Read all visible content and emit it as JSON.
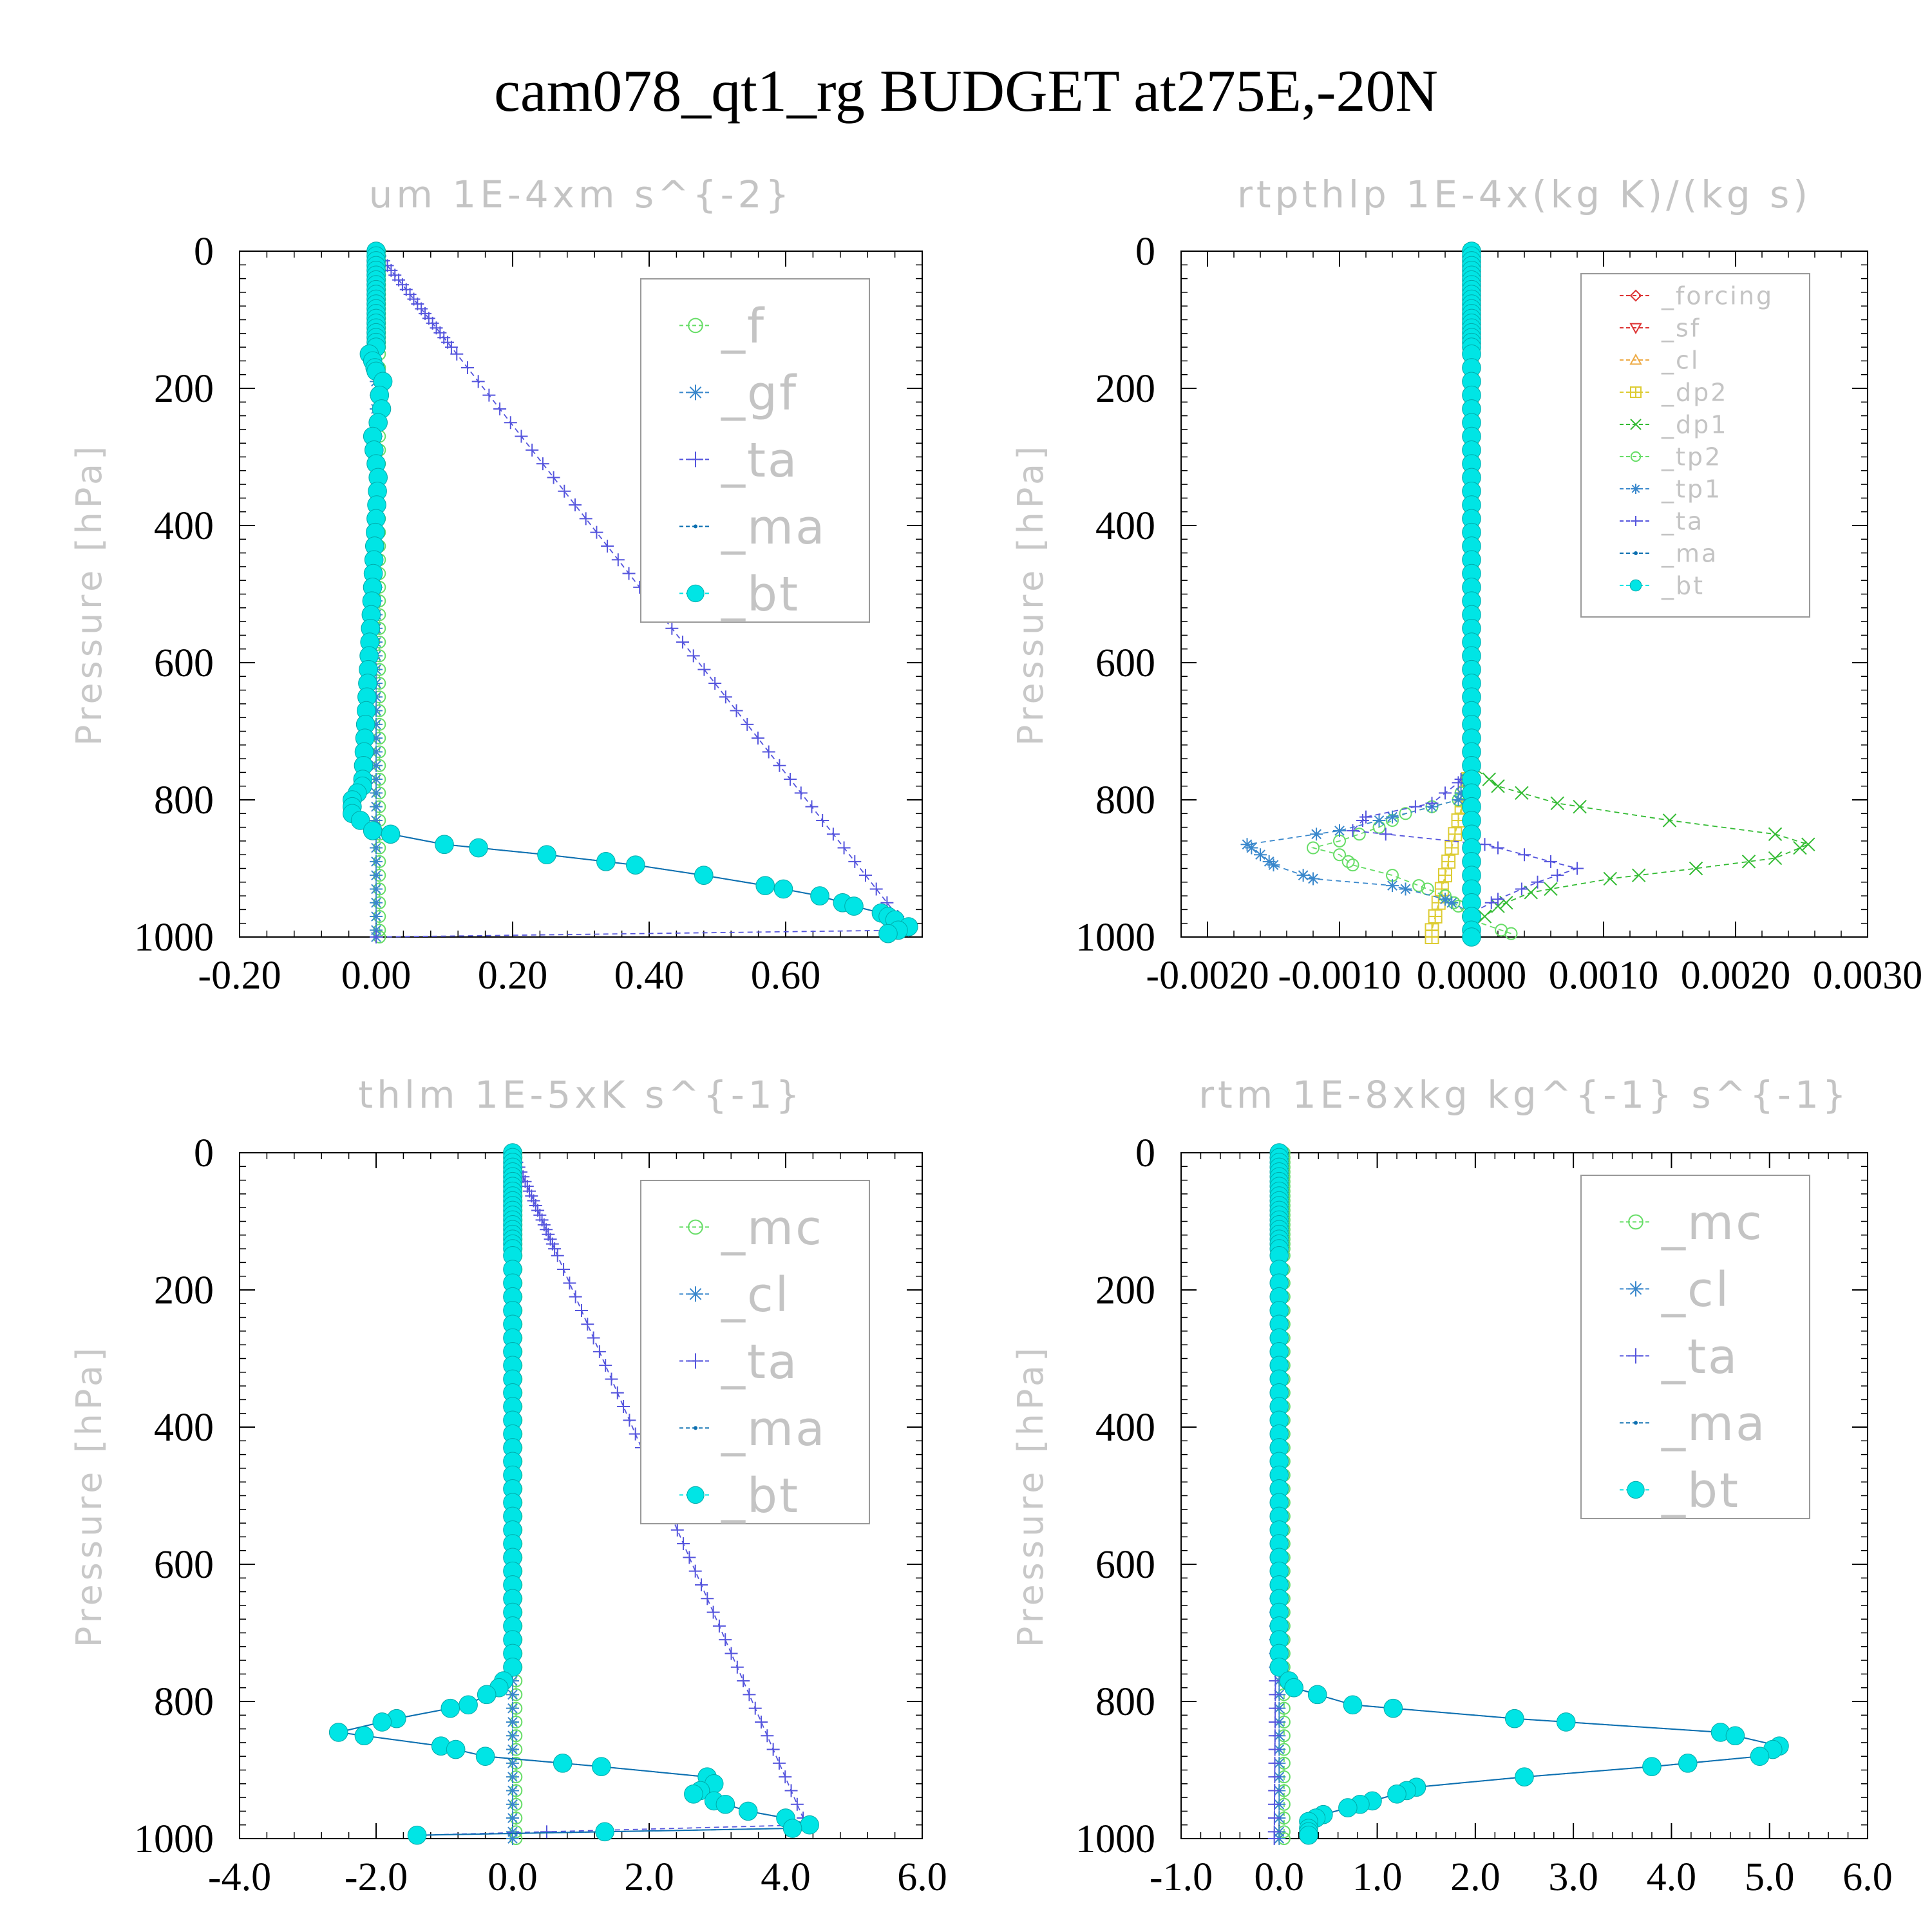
{
  "title": "cam078_qt1_rg  BUDGET at275E,-20N",
  "colors": {
    "bt": "#00e5e5",
    "ma": "#0b6fb0",
    "ta": "#5555dd",
    "gf": "#3a88cc",
    "f": "#66dd66",
    "mc": "#66dd66",
    "cl": "#3a88cc",
    "dp1": "#33bb33",
    "dp2": "#ddcc33",
    "tp1": "#3a88cc",
    "tp2": "#66dd66",
    "forcing": "#dd3333",
    "sf": "#dd3333",
    "cl_rt": "#eeaa44"
  },
  "chart_data": [
    {
      "type": "line",
      "title": "um  1E-4xm s^{-2}",
      "ylabel": "Pressure [hPa]",
      "xlim": [
        -0.2,
        0.8
      ],
      "ylim": [
        1000,
        0
      ],
      "xticks": [
        "-0.20",
        "0.00",
        "0.20",
        "0.40",
        "0.60"
      ],
      "xtick_values": [
        -0.2,
        0.0,
        0.2,
        0.4,
        0.6
      ],
      "yticks": [
        "0",
        "200",
        "400",
        "600",
        "800",
        "1000"
      ],
      "ytick_values": [
        0,
        200,
        400,
        600,
        800,
        1000
      ],
      "legend": [
        "_f",
        "_gf",
        "_ta",
        "_ma",
        "_bt"
      ],
      "legend_position": "top-right",
      "series": [
        {
          "name": "_f",
          "style": "circle",
          "pressure": [
            0,
            1000
          ],
          "values": [
            0.005,
            0.005
          ]
        },
        {
          "name": "_gf",
          "style": "star",
          "pressure": [
            0,
            1000
          ],
          "values": [
            0.0,
            0.0
          ]
        },
        {
          "name": "_ta",
          "style": "plus",
          "pressure": [
            0,
            990,
            1000
          ],
          "values": [
            0.0,
            0.78,
            0.0
          ]
        },
        {
          "name": "_ma",
          "style": "dot",
          "pressure": [
            0,
            140,
            150,
            160,
            175,
            190,
            210,
            230,
            250,
            270,
            290,
            310,
            330,
            780,
            800,
            820,
            845,
            865,
            880,
            895,
            910,
            925,
            940,
            955,
            965,
            975,
            985,
            995
          ],
          "values": [
            0.0,
            0.0,
            -0.01,
            -0.005,
            0.0,
            0.01,
            0.005,
            0.008,
            0.003,
            -0.005,
            -0.003,
            0.0,
            0.003,
            -0.02,
            -0.035,
            -0.035,
            -0.005,
            0.1,
            0.25,
            0.38,
            0.48,
            0.57,
            0.65,
            0.7,
            0.74,
            0.76,
            0.78,
            0.75
          ]
        },
        {
          "name": "_bt",
          "style": "disc",
          "pressure": [
            0,
            140,
            150,
            160,
            175,
            190,
            210,
            230,
            250,
            270,
            290,
            310,
            330,
            780,
            800,
            820,
            845,
            865,
            880,
            895,
            910,
            925,
            940,
            955,
            965,
            975,
            985,
            995
          ],
          "values": [
            0.0,
            0.0,
            -0.01,
            -0.005,
            0.0,
            0.01,
            0.005,
            0.008,
            0.003,
            -0.005,
            -0.003,
            0.0,
            0.003,
            -0.02,
            -0.035,
            -0.035,
            -0.005,
            0.1,
            0.25,
            0.38,
            0.48,
            0.57,
            0.65,
            0.7,
            0.74,
            0.76,
            0.78,
            0.75
          ]
        }
      ]
    },
    {
      "type": "line",
      "title": "rtpthlp  1E-4x(kg K)/(kg s)",
      "ylabel": "Pressure [hPa]",
      "xlim": [
        -0.0022,
        0.003
      ],
      "ylim": [
        1000,
        0
      ],
      "xticks": [
        "-0.0020",
        "-0.0010",
        "0.0000",
        "0.0010",
        "0.0020",
        "0.0030"
      ],
      "xtick_values": [
        -0.002,
        -0.001,
        0.0,
        0.001,
        0.002,
        0.003
      ],
      "yticks": [
        "0",
        "200",
        "400",
        "600",
        "800",
        "1000"
      ],
      "ytick_values": [
        0,
        200,
        400,
        600,
        800,
        1000
      ],
      "legend": [
        "_forcing",
        "_sf",
        "_cl",
        "_dp2",
        "_dp1",
        "_tp2",
        "_tp1",
        "_ta",
        "_ma",
        "_bt"
      ],
      "legend_position": "top-right",
      "series": [
        {
          "name": "_forcing",
          "style": "diamond",
          "pressure": [
            0,
            1000
          ],
          "values": [
            0.0,
            0.0
          ]
        },
        {
          "name": "_sf",
          "style": "triangle-down",
          "pressure": [
            0,
            1000
          ],
          "values": [
            0.0,
            0.0
          ]
        },
        {
          "name": "_cl",
          "style": "triangle-up",
          "pressure": [
            0,
            1000
          ],
          "values": [
            0.0,
            0.0
          ]
        },
        {
          "name": "_dp2",
          "style": "square-plus",
          "pressure": [
            0,
            750,
            990,
            1000
          ],
          "values": [
            0.0,
            0.0,
            -0.0003,
            -0.0003
          ]
        },
        {
          "name": "_dp1",
          "style": "x",
          "pressure": [
            0,
            750,
            780,
            805,
            830,
            850,
            865,
            885,
            900,
            915,
            935,
            955,
            970,
            985
          ],
          "values": [
            0.0,
            0.0,
            0.0002,
            0.00065,
            0.0015,
            0.0023,
            0.00255,
            0.0023,
            0.0017,
            0.00105,
            0.00045,
            0.0002,
            0.0001,
            0.0
          ],
          "label_ignore": true
        },
        {
          "name": "_tp2",
          "style": "circle",
          "pressure": [
            0,
            750,
            800,
            820,
            840,
            860,
            870,
            880,
            895,
            910,
            925,
            940,
            955,
            975,
            995
          ],
          "values": [
            0.0,
            0.0,
            -0.0001,
            -0.0005,
            -0.0007,
            -0.001,
            -0.0012,
            -0.001,
            -0.0009,
            -0.0006,
            -0.0004,
            -0.0002,
            -0.0001,
            0.0,
            0.0003
          ]
        },
        {
          "name": "_tp1",
          "style": "star",
          "pressure": [
            0,
            750,
            800,
            825,
            845,
            865,
            880,
            895,
            915,
            925,
            945,
            965,
            985
          ],
          "values": [
            0.0,
            0.0,
            -0.0001,
            -0.0006,
            -0.001,
            -0.0017,
            -0.0016,
            -0.0015,
            -0.0012,
            -0.0006,
            -0.0002,
            0.0,
            0.0
          ]
        },
        {
          "name": "_ta",
          "style": "plus",
          "pressure": [
            0,
            750,
            775,
            805,
            825,
            845,
            865,
            880,
            900,
            920,
            945,
            965,
            985
          ],
          "values": [
            0.0,
            0.0,
            -0.0001,
            -0.0003,
            -0.0008,
            -0.0009,
            0.0001,
            0.0004,
            0.0008,
            0.0005,
            0.0002,
            0.0,
            0.0
          ]
        },
        {
          "name": "_ma",
          "style": "dot",
          "pressure": [
            0,
            1000
          ],
          "values": [
            0.0,
            0.0
          ]
        },
        {
          "name": "_bt",
          "style": "disc",
          "pressure": [
            0,
            1000
          ],
          "values": [
            0.0,
            0.0
          ]
        }
      ]
    },
    {
      "type": "line",
      "title": "thlm  1E-5xK s^{-1}",
      "ylabel": "Pressure [hPa]",
      "xlim": [
        -4.0,
        6.0
      ],
      "ylim": [
        1000,
        0
      ],
      "xticks": [
        "-4.0",
        "-2.0",
        "0.0",
        "2.0",
        "4.0",
        "6.0"
      ],
      "xtick_values": [
        -4.0,
        -2.0,
        0.0,
        2.0,
        4.0,
        6.0
      ],
      "yticks": [
        "0",
        "200",
        "400",
        "600",
        "800",
        "1000"
      ],
      "ytick_values": [
        0,
        200,
        400,
        600,
        800,
        1000
      ],
      "legend": [
        "_mc",
        "_cl",
        "_ta",
        "_ma",
        "_bt"
      ],
      "legend_position": "top-right",
      "series": [
        {
          "name": "_mc",
          "style": "circle",
          "pressure": [
            0,
            1000
          ],
          "values": [
            0.05,
            0.05
          ]
        },
        {
          "name": "_cl",
          "style": "star",
          "pressure": [
            0,
            1000
          ],
          "values": [
            0.0,
            0.0
          ]
        },
        {
          "name": "_ta",
          "style": "plus",
          "pressure": [
            0,
            980,
            995
          ],
          "values": [
            0.0,
            4.3,
            -1.4
          ]
        },
        {
          "name": "_ma",
          "style": "dot",
          "pressure": [
            0,
            750,
            780,
            805,
            825,
            845,
            865,
            880,
            895,
            910,
            920,
            935,
            945,
            960,
            970,
            980,
            985,
            995
          ],
          "values": [
            0.0,
            0.0,
            -0.2,
            -0.65,
            -1.7,
            -2.55,
            -1.05,
            -0.4,
            1.3,
            2.85,
            2.95,
            2.65,
            2.95,
            3.45,
            4.0,
            4.35,
            4.1,
            -1.4
          ]
        },
        {
          "name": "_bt",
          "style": "disc",
          "pressure": [
            0,
            750,
            780,
            805,
            825,
            845,
            865,
            880,
            895,
            910,
            920,
            935,
            945,
            960,
            970,
            980,
            985,
            995
          ],
          "values": [
            0.0,
            0.0,
            -0.2,
            -0.65,
            -1.7,
            -2.55,
            -1.05,
            -0.4,
            1.3,
            2.85,
            2.95,
            2.65,
            2.95,
            3.45,
            4.0,
            4.35,
            4.1,
            -1.4
          ]
        }
      ]
    },
    {
      "type": "line",
      "title": "rtm  1E-8xkg kg^{-1} s^{-1}",
      "ylabel": "Pressure [hPa]",
      "xlim": [
        -1.0,
        6.0
      ],
      "ylim": [
        1000,
        0
      ],
      "xticks": [
        "-1.0",
        "0.0",
        "1.0",
        "2.0",
        "3.0",
        "4.0",
        "5.0",
        "6.0"
      ],
      "xtick_values": [
        -1.0,
        0.0,
        1.0,
        2.0,
        3.0,
        4.0,
        5.0,
        6.0
      ],
      "yticks": [
        "0",
        "200",
        "400",
        "600",
        "800",
        "1000"
      ],
      "ytick_values": [
        0,
        200,
        400,
        600,
        800,
        1000
      ],
      "legend": [
        "_mc",
        "_cl",
        "_ta",
        "_ma",
        "_bt"
      ],
      "legend_position": "top-right",
      "series": [
        {
          "name": "_mc",
          "style": "circle",
          "pressure": [
            0,
            1000
          ],
          "values": [
            0.05,
            0.05
          ]
        },
        {
          "name": "_cl",
          "style": "star",
          "pressure": [
            0,
            1000
          ],
          "values": [
            0.0,
            0.0
          ]
        },
        {
          "name": "_ta",
          "style": "plus",
          "pressure": [
            0,
            1000
          ],
          "values": [
            0.0,
            -0.05
          ]
        },
        {
          "name": "_ma",
          "style": "dot",
          "pressure": [
            0,
            750,
            780,
            805,
            825,
            845,
            865,
            880,
            895,
            910,
            925,
            935,
            945,
            955,
            965,
            975,
            985,
            995
          ],
          "values": [
            0.0,
            0.0,
            0.15,
            0.75,
            2.4,
            4.5,
            5.1,
            4.9,
            3.8,
            2.5,
            1.4,
            1.2,
            0.95,
            0.7,
            0.45,
            0.3,
            0.3,
            0.3
          ]
        },
        {
          "name": "_bt",
          "style": "disc",
          "pressure": [
            0,
            750,
            780,
            805,
            825,
            845,
            865,
            880,
            895,
            910,
            925,
            935,
            945,
            955,
            965,
            975,
            985,
            995
          ],
          "values": [
            0.0,
            0.0,
            0.15,
            0.75,
            2.4,
            4.5,
            5.1,
            4.9,
            3.8,
            2.5,
            1.4,
            1.2,
            0.95,
            0.7,
            0.45,
            0.3,
            0.3,
            0.3
          ]
        }
      ]
    }
  ]
}
